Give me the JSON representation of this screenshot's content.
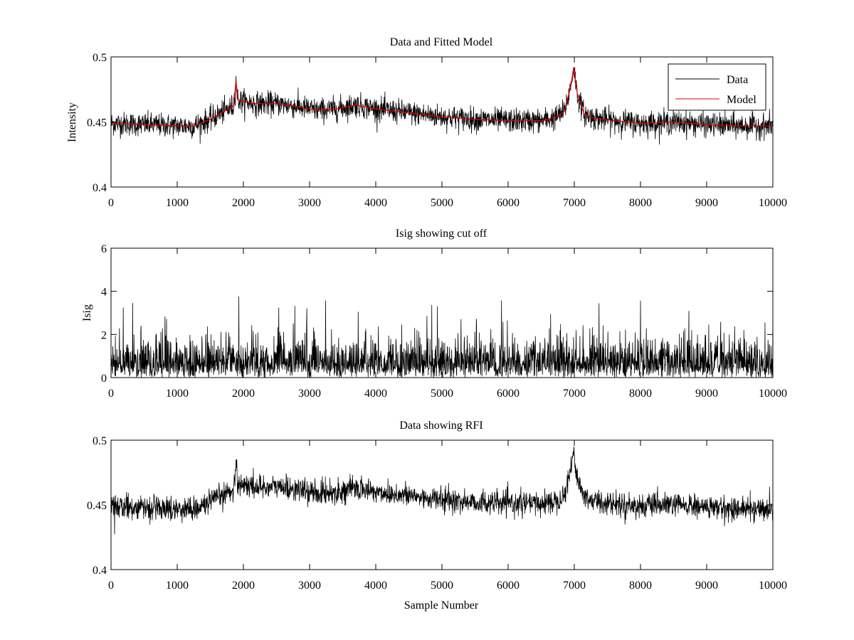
{
  "chart_data": [
    {
      "type": "line",
      "title": "Data and Fitted Model",
      "xlabel": "",
      "ylabel": "Intensity",
      "xlim": [
        0,
        10000
      ],
      "ylim": [
        0.4,
        0.5
      ],
      "xticks": [
        0,
        1000,
        2000,
        3000,
        4000,
        5000,
        6000,
        7000,
        8000,
        9000,
        10000
      ],
      "yticks": [
        0.4,
        0.45,
        0.5
      ],
      "ytick_labels": [
        "0.4",
        "0.45",
        "0.5"
      ],
      "grid": false,
      "legend": {
        "position": "top-right",
        "entries": [
          "Data",
          "Model"
        ]
      },
      "series": [
        {
          "name": "Data",
          "color": "#000000",
          "noise_amplitude": 0.0045,
          "x": [
            0,
            500,
            1000,
            1250,
            1500,
            1700,
            1850,
            1890,
            1910,
            1950,
            2200,
            2500,
            2800,
            3100,
            3400,
            3700,
            4000,
            4500,
            5000,
            5500,
            6000,
            6500,
            6700,
            6850,
            6950,
            6990,
            7050,
            7150,
            7300,
            7600,
            8000,
            8500,
            9000,
            9500,
            10000
          ],
          "values": [
            0.449,
            0.448,
            0.447,
            0.447,
            0.452,
            0.458,
            0.462,
            0.482,
            0.468,
            0.466,
            0.464,
            0.464,
            0.462,
            0.459,
            0.46,
            0.463,
            0.46,
            0.457,
            0.454,
            0.452,
            0.451,
            0.451,
            0.453,
            0.458,
            0.478,
            0.492,
            0.47,
            0.456,
            0.453,
            0.451,
            0.449,
            0.45,
            0.448,
            0.447,
            0.447
          ]
        },
        {
          "name": "Model",
          "color": "#e00000",
          "x": [
            0,
            500,
            1000,
            1250,
            1500,
            1700,
            1850,
            1890,
            1910,
            1950,
            2200,
            2500,
            2800,
            3100,
            3400,
            3700,
            4000,
            4500,
            5000,
            5500,
            6000,
            6500,
            6700,
            6850,
            6950,
            6990,
            7050,
            7150,
            7300,
            7600,
            8000,
            8500,
            9000,
            9500,
            10000
          ],
          "values": [
            0.449,
            0.448,
            0.447,
            0.447,
            0.452,
            0.458,
            0.462,
            0.482,
            0.468,
            0.466,
            0.464,
            0.464,
            0.462,
            0.459,
            0.46,
            0.463,
            0.46,
            0.457,
            0.454,
            0.452,
            0.451,
            0.451,
            0.453,
            0.458,
            0.478,
            0.492,
            0.47,
            0.456,
            0.453,
            0.451,
            0.449,
            0.45,
            0.448,
            0.447,
            0.447
          ]
        }
      ]
    },
    {
      "type": "line",
      "title": "Isig showing cut off",
      "xlabel": "",
      "ylabel": "Isig",
      "xlim": [
        0,
        10000
      ],
      "ylim": [
        0,
        6
      ],
      "xticks": [
        0,
        1000,
        2000,
        3000,
        4000,
        5000,
        6000,
        7000,
        8000,
        9000,
        10000
      ],
      "yticks": [
        0,
        2,
        4,
        6
      ],
      "ytick_labels": [
        "0",
        "2",
        "4",
        "6"
      ],
      "grid": false,
      "series": [
        {
          "name": "Isig",
          "color": "#000000",
          "distribution": "|gaussian| noise, mean ~0.8, peaks up to ~3.8",
          "noise_scale": 1.0
        }
      ]
    },
    {
      "type": "line",
      "title": "Data showing RFI",
      "xlabel": "Sample Number",
      "ylabel": "",
      "xlim": [
        0,
        10000
      ],
      "ylim": [
        0.4,
        0.5
      ],
      "xticks": [
        0,
        1000,
        2000,
        3000,
        4000,
        5000,
        6000,
        7000,
        8000,
        9000,
        10000
      ],
      "yticks": [
        0.4,
        0.45,
        0.5
      ],
      "ytick_labels": [
        "0.4",
        "0.45",
        "0.5"
      ],
      "grid": false,
      "series": [
        {
          "name": "Data",
          "color": "#000000",
          "noise_amplitude": 0.0045,
          "x": [
            0,
            500,
            1000,
            1250,
            1500,
            1700,
            1850,
            1890,
            1910,
            1950,
            2200,
            2500,
            2800,
            3100,
            3400,
            3700,
            4000,
            4500,
            5000,
            5500,
            6000,
            6500,
            6700,
            6850,
            6950,
            6990,
            7050,
            7150,
            7300,
            7600,
            8000,
            8500,
            9000,
            9500,
            10000
          ],
          "values": [
            0.449,
            0.448,
            0.447,
            0.447,
            0.452,
            0.458,
            0.462,
            0.482,
            0.468,
            0.466,
            0.464,
            0.464,
            0.462,
            0.459,
            0.46,
            0.463,
            0.46,
            0.457,
            0.454,
            0.452,
            0.451,
            0.451,
            0.453,
            0.458,
            0.478,
            0.492,
            0.47,
            0.456,
            0.453,
            0.451,
            0.449,
            0.45,
            0.448,
            0.447,
            0.447
          ]
        }
      ]
    }
  ]
}
